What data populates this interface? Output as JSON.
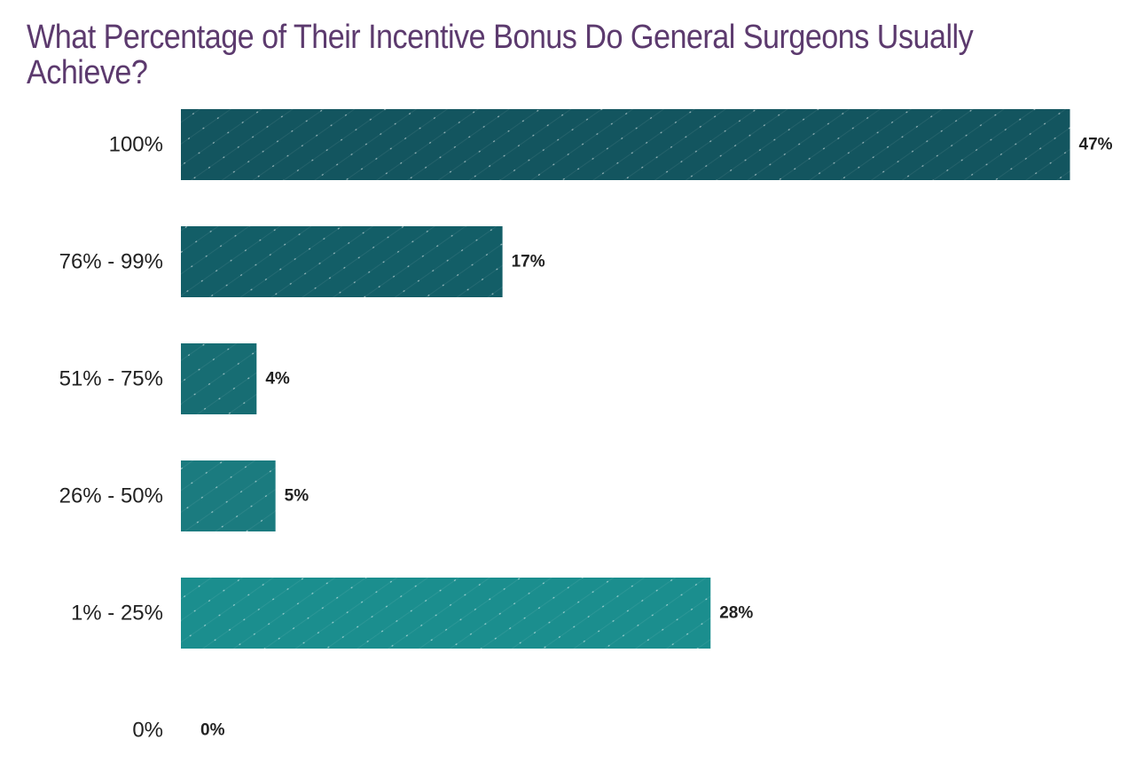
{
  "chart_data": {
    "type": "bar",
    "orientation": "horizontal",
    "title": "What Percentage of Their Incentive Bonus Do General Surgeons Usually Achieve?",
    "categories": [
      "100%",
      "76% - 99%",
      "51% - 75%",
      "26% - 50%",
      "1% - 25%",
      "0%"
    ],
    "values": [
      47,
      17,
      4,
      5,
      28,
      0
    ],
    "value_labels": [
      "47%",
      "17%",
      "4%",
      "5%",
      "28%",
      "0%"
    ],
    "bar_colors": [
      "#13555f",
      "#135e67",
      "#176d73",
      "#1b7b7f",
      "#1b8e8e",
      "#1b8e8e"
    ],
    "xlabel": "",
    "ylabel": "",
    "grid": false,
    "legend": "none"
  }
}
